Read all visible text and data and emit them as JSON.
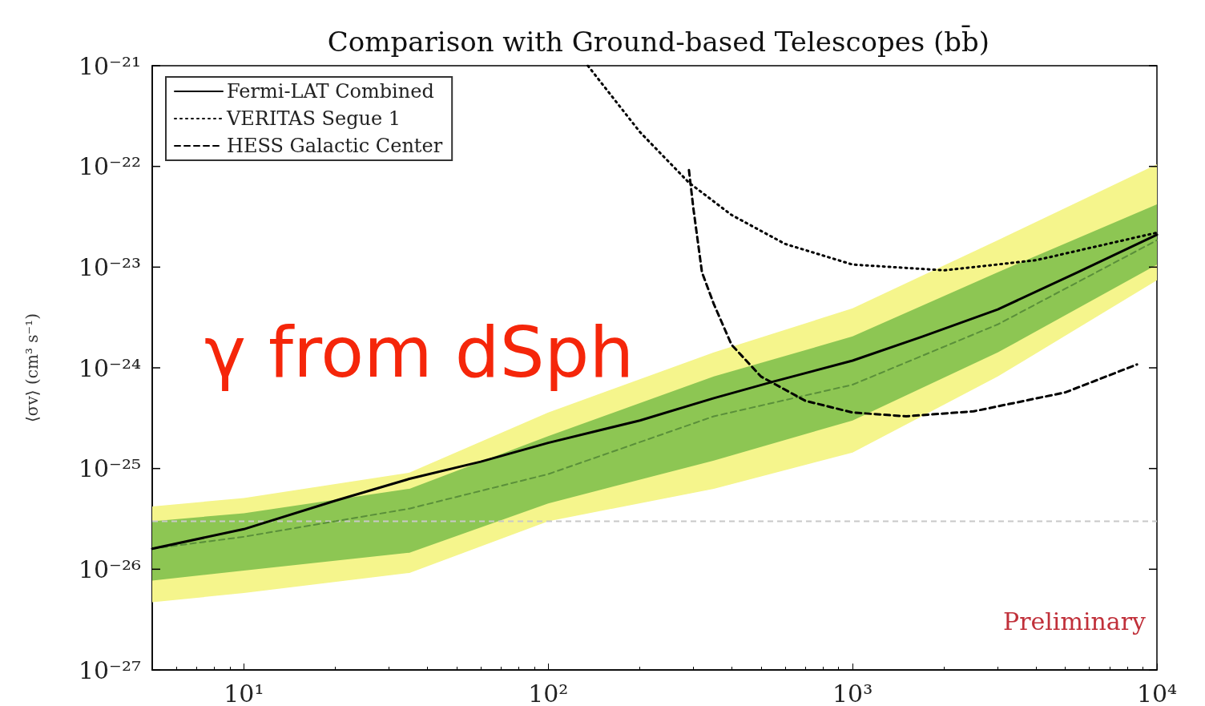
{
  "chart_data": {
    "type": "line",
    "title": "Comparison with Ground-based Telescopes (bb̄)",
    "ylabel": "⟨σv⟩ (cm³ s⁻¹)",
    "log": "xy",
    "xlim": [
      5,
      10000
    ],
    "ylim": [
      1e-27,
      1e-21
    ],
    "xticks": [
      {
        "value": 10,
        "label": "10¹"
      },
      {
        "value": 100,
        "label": "10²"
      },
      {
        "value": 1000,
        "label": "10³"
      },
      {
        "value": 10000,
        "label": "10⁴"
      }
    ],
    "yticks": [
      {
        "value": 1e-27,
        "label": "10⁻²⁷"
      },
      {
        "value": 1e-26,
        "label": "10⁻²⁶"
      },
      {
        "value": 1e-25,
        "label": "10⁻²⁵"
      },
      {
        "value": 1e-24,
        "label": "10⁻²⁴"
      },
      {
        "value": 1e-23,
        "label": "10⁻²³"
      },
      {
        "value": 1e-22,
        "label": "10⁻²²"
      },
      {
        "value": 1e-21,
        "label": "10⁻²¹"
      }
    ],
    "grid": false,
    "legend": "top left",
    "marker": "none",
    "series": [
      {
        "name": "Fermi-LAT Combined",
        "color": "#000000",
        "line_style": "solid",
        "x": [
          5,
          10,
          20,
          35,
          60,
          100,
          200,
          350,
          550,
          1000,
          1700,
          3000,
          5500,
          10000
        ],
        "values": [
          1.6e-26,
          2.5e-26,
          4.8e-26,
          7.9e-26,
          1.17e-25,
          1.8e-25,
          3e-25,
          5e-25,
          7.3e-25,
          1.18e-24,
          2.05e-24,
          3.8e-24,
          8.9e-24,
          2.1e-23
        ]
      },
      {
        "name": "VERITAS Segue 1",
        "color": "#000000",
        "line_style": "dotted",
        "x": [
          135,
          200,
          290,
          400,
          600,
          1000,
          2000,
          4000,
          10000
        ],
        "values": [
          1e-21,
          2.2e-22,
          6.9e-23,
          3.3e-23,
          1.7e-23,
          1.06e-23,
          9.3e-24,
          1.17e-23,
          2.2e-23
        ]
      },
      {
        "name": "HESS Galactic Center",
        "color": "#000000",
        "line_style": "dashed",
        "x": [
          290,
          300,
          320,
          350,
          400,
          500,
          700,
          1000,
          1500,
          2500,
          5000,
          8600
        ],
        "values": [
          9.2e-23,
          3.8e-23,
          8.9e-24,
          4.3e-24,
          1.7e-24,
          8.2e-25,
          4.7e-25,
          3.6e-25,
          3.3e-25,
          3.7e-25,
          5.7e-25,
          1.08e-24
        ]
      },
      {
        "color": "#f5f58c",
        "x": [
          5,
          10,
          35,
          100,
          350,
          1000,
          3000,
          10000
        ],
        "values": [
          null,
          null,
          null,
          null,
          null,
          null,
          null,
          null
        ],
        "upper": [
          4.2e-26,
          5.1e-26,
          9.1e-26,
          3.6e-25,
          1.42e-24,
          3.9e-24,
          1.85e-23,
          1.05e-22
        ],
        "lower": [
          4.7e-27,
          5.8e-27,
          9.2e-27,
          3e-26,
          6.3e-26,
          1.44e-25,
          8.2e-25,
          7.4e-24
        ]
      },
      {
        "color": "#8dc653",
        "x": [
          5,
          10,
          35,
          100,
          350,
          1000,
          3000,
          10000
        ],
        "values": [
          null,
          null,
          null,
          null,
          null,
          null,
          null,
          null
        ],
        "upper": [
          3e-26,
          3.6e-26,
          6.3e-26,
          2.1e-25,
          8.2e-25,
          2.05e-24,
          8.9e-24,
          4.2e-23
        ],
        "lower": [
          7.7e-27,
          9.7e-27,
          1.46e-26,
          4.5e-26,
          1.2e-25,
          3e-25,
          1.42e-24,
          1.06e-23
        ]
      },
      {
        "color": "#5a8f3a",
        "line_style": "dashed",
        "x": [
          5,
          10,
          35,
          100,
          350,
          1000,
          3000,
          10000
        ],
        "values": [
          1.6e-26,
          2.1e-26,
          4e-26,
          8.8e-26,
          3.3e-25,
          6.8e-25,
          2.7e-24,
          1.85e-23
        ]
      }
    ],
    "ref_lines": [
      {
        "axis": "y",
        "value": 3e-26,
        "color": "#c8c8c8",
        "line_style": "dashed"
      }
    ],
    "annotations": [
      "γ from dSph",
      "Preliminary"
    ]
  }
}
